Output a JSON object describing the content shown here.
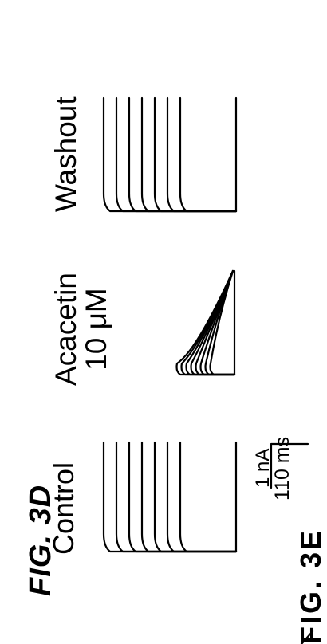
{
  "figure": {
    "label": "FIG. 3D",
    "bottom_label": "FIG. 3E",
    "panels": [
      {
        "condition": "Control"
      },
      {
        "condition": "Acacetin",
        "concentration": "10 μM"
      },
      {
        "condition": "Washout"
      }
    ],
    "scale_bar": {
      "current": "1 nA",
      "time": "110 ms"
    }
  }
}
